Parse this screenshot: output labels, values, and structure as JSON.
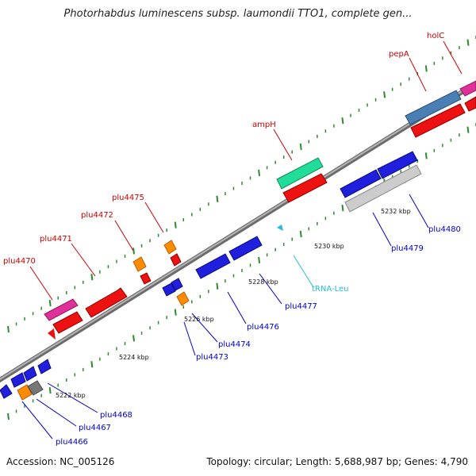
{
  "title": "Photorhabdus luminescens subsp. laumondii TTO1, complete gen...",
  "accession": "Accession: NC_005126",
  "summary": "Topology: circular; Length: 5,688,987 bp; Genes: 4,790",
  "colors": {
    "forward_label": "#cc0000",
    "reverse_label": "#0000cc",
    "trna_label": "#22bbdd",
    "backbone": "#8a8a8a",
    "tick": "#2e8b2e"
  },
  "scale_labels": [
    "5222 kbp",
    "5224 kbp",
    "5226 kbp",
    "5228 kbp",
    "5230 kbp",
    "5232 kbp"
  ],
  "features_forward": [
    {
      "label": "plu4470",
      "color": "#e0309a"
    },
    {
      "label": "plu4471",
      "color": "#ee1111"
    },
    {
      "label": "plu4472",
      "color": "#ff8c00"
    },
    {
      "label": "plu4475",
      "color": "#ff8c00"
    },
    {
      "label": "ampH",
      "color": "#22dd99"
    },
    {
      "label": "pepA",
      "color": "#4a7fb5"
    },
    {
      "label": "holC",
      "color": "#e0309a"
    }
  ],
  "features_reverse": [
    {
      "label": "plu4466",
      "color": "#ff8c00"
    },
    {
      "label": "plu4467",
      "color": "#777777"
    },
    {
      "label": "plu4468",
      "color": "#1f1fdd"
    },
    {
      "label": "plu4473",
      "color": "#1f1fdd"
    },
    {
      "label": "plu4474",
      "color": "#ff8c00"
    },
    {
      "label": "plu4476",
      "color": "#1f1fdd"
    },
    {
      "label": "plu4477",
      "color": "#1f1fdd"
    },
    {
      "label": "tRNA-Leu",
      "color": "#22bbdd"
    },
    {
      "label": "plu4479",
      "color": "#1f1fdd"
    },
    {
      "label": "plu4480",
      "color": "#cccccc"
    }
  ]
}
